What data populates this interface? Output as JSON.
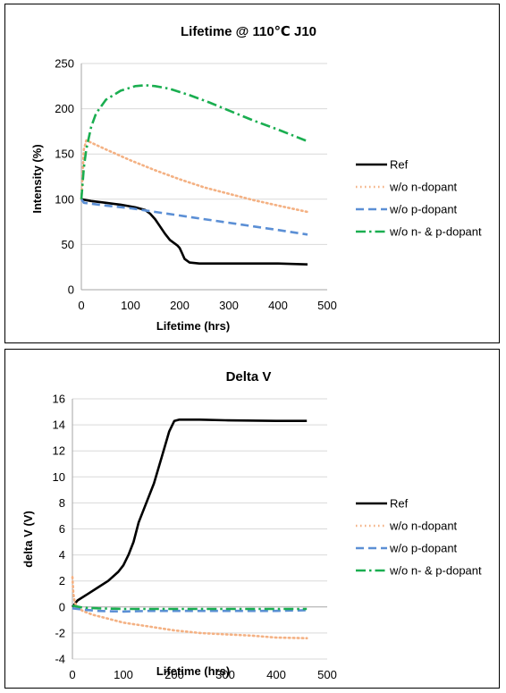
{
  "chart_data": [
    {
      "type": "line",
      "title": "Lifetime @ 110℃ J10",
      "xlabel": "Lifetime (hrs)",
      "ylabel": "Intensity (%)",
      "xlim": [
        0,
        500
      ],
      "ylim": [
        0,
        250
      ],
      "xticks": [
        "0",
        "100",
        "200",
        "300",
        "400",
        "500"
      ],
      "yticks": [
        "0",
        "50",
        "100",
        "150",
        "200",
        "250"
      ],
      "grid": true,
      "legend": "right",
      "series": [
        {
          "name": "Ref",
          "color": "#000000",
          "dash": "solid",
          "x": [
            0,
            20,
            50,
            80,
            110,
            130,
            140,
            150,
            160,
            170,
            180,
            195,
            200,
            205,
            210,
            220,
            240,
            300,
            400,
            460
          ],
          "y": [
            100,
            98,
            96,
            94,
            91,
            88,
            84,
            78,
            70,
            62,
            55,
            49,
            46,
            40,
            34,
            30,
            29,
            29,
            29,
            28
          ]
        },
        {
          "name": "w/o n-dopant",
          "color": "#F4B183",
          "dash": "dot",
          "x": [
            0,
            5,
            10,
            50,
            100,
            150,
            200,
            250,
            300,
            350,
            400,
            460
          ],
          "y": [
            100,
            155,
            165,
            155,
            143,
            132,
            122,
            113,
            106,
            99,
            93,
            86
          ]
        },
        {
          "name": "w/o p-dopant",
          "color": "#5B8FD5",
          "dash": "dash",
          "x": [
            0,
            5,
            50,
            100,
            150,
            200,
            250,
            300,
            350,
            400,
            460
          ],
          "y": [
            100,
            96,
            93,
            90,
            86,
            82,
            78,
            74,
            70,
            66,
            61
          ]
        },
        {
          "name": "w/o n- & p-dopant",
          "color": "#1AAE50",
          "dash": "dashdot",
          "x": [
            0,
            5,
            10,
            20,
            30,
            50,
            80,
            110,
            130,
            150,
            180,
            220,
            260,
            300,
            350,
            400,
            460
          ],
          "y": [
            100,
            135,
            155,
            180,
            195,
            210,
            220,
            225,
            226,
            225,
            222,
            215,
            207,
            198,
            187,
            177,
            164
          ]
        }
      ]
    },
    {
      "type": "line",
      "title": "Delta V",
      "xlabel": "Lifetime (hrs)",
      "ylabel": "delta V (V)",
      "xlim": [
        0,
        500
      ],
      "ylim": [
        -4,
        16
      ],
      "xticks": [
        "0",
        "100",
        "200",
        "300",
        "400",
        "500"
      ],
      "yticks": [
        "-4",
        "-2",
        "0",
        "2",
        "4",
        "6",
        "8",
        "10",
        "12",
        "14",
        "16"
      ],
      "grid": true,
      "legend": "right",
      "series": [
        {
          "name": "Ref",
          "color": "#000000",
          "dash": "solid",
          "x": [
            0,
            10,
            30,
            50,
            70,
            90,
            100,
            110,
            120,
            130,
            140,
            160,
            175,
            190,
            200,
            210,
            250,
            300,
            400,
            460
          ],
          "y": [
            0,
            0.5,
            1.0,
            1.5,
            2.0,
            2.7,
            3.2,
            4.0,
            5.0,
            6.5,
            7.5,
            9.5,
            11.5,
            13.5,
            14.3,
            14.4,
            14.4,
            14.35,
            14.3,
            14.3
          ]
        },
        {
          "name": "w/o n-dopant",
          "color": "#F4B183",
          "dash": "dot",
          "x": [
            0,
            2,
            5,
            10,
            20,
            40,
            70,
            100,
            150,
            200,
            250,
            300,
            350,
            400,
            460
          ],
          "y": [
            2.3,
            1.0,
            0.3,
            0.0,
            -0.3,
            -0.6,
            -0.9,
            -1.2,
            -1.5,
            -1.8,
            -2.0,
            -2.1,
            -2.2,
            -2.35,
            -2.4
          ]
        },
        {
          "name": "w/o p-dopant",
          "color": "#5B8FD5",
          "dash": "dash",
          "x": [
            0,
            20,
            50,
            100,
            150,
            200,
            250,
            300,
            350,
            400,
            460
          ],
          "y": [
            -0.1,
            -0.2,
            -0.3,
            -0.35,
            -0.3,
            -0.3,
            -0.3,
            -0.3,
            -0.3,
            -0.3,
            -0.25
          ]
        },
        {
          "name": "w/o n- & p-dopant",
          "color": "#1AAE50",
          "dash": "dashdot",
          "x": [
            0,
            20,
            50,
            100,
            150,
            200,
            250,
            300,
            350,
            400,
            460
          ],
          "y": [
            0.1,
            -0.05,
            -0.1,
            -0.15,
            -0.15,
            -0.15,
            -0.15,
            -0.15,
            -0.15,
            -0.15,
            -0.15
          ]
        }
      ]
    }
  ]
}
